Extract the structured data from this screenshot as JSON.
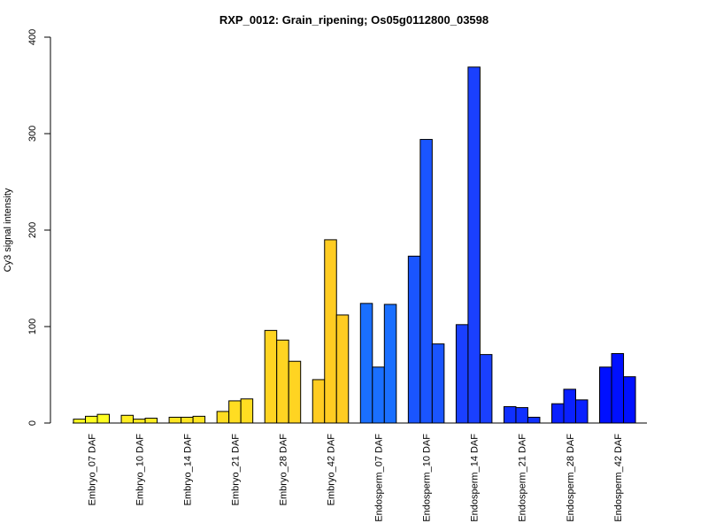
{
  "chart_data": {
    "type": "bar",
    "title": "RXP_0012: Grain_ripening; Os05g0112800_03598",
    "ylabel": "Cy3 signal intensity",
    "xlabel": "",
    "ylim": [
      0,
      400
    ],
    "yticks": [
      0,
      100,
      200,
      300,
      400
    ],
    "grid": false,
    "categories": [
      "Embryo_07 DAF",
      "Embryo_10 DAF",
      "Embryo_14 DAF",
      "Embryo_21 DAF",
      "Embryo_28 DAF",
      "Embryo_42 DAF",
      "Endosperm_07 DAF",
      "Endosperm_10 DAF",
      "Endosperm_14 DAF",
      "Endosperm_21 DAF",
      "Endosperm_28 DAF",
      "Endosperm_42 DAF"
    ],
    "colors": [
      "#ffff22",
      "#ffee22",
      "#ffe522",
      "#ffdd22",
      "#ffd422",
      "#ffcc22",
      "#1a6fff",
      "#1a55ff",
      "#1a40ff",
      "#1030ff",
      "#0a20ff",
      "#0010ff"
    ],
    "values": [
      [
        4,
        7,
        9
      ],
      [
        8,
        4,
        5
      ],
      [
        6,
        6,
        7
      ],
      [
        12,
        23,
        25
      ],
      [
        96,
        86,
        64
      ],
      [
        45,
        190,
        112
      ],
      [
        124,
        58,
        123
      ],
      [
        173,
        294,
        82
      ],
      [
        102,
        369,
        71
      ],
      [
        17,
        16,
        6
      ],
      [
        20,
        35,
        24
      ],
      [
        58,
        72,
        48
      ]
    ]
  }
}
